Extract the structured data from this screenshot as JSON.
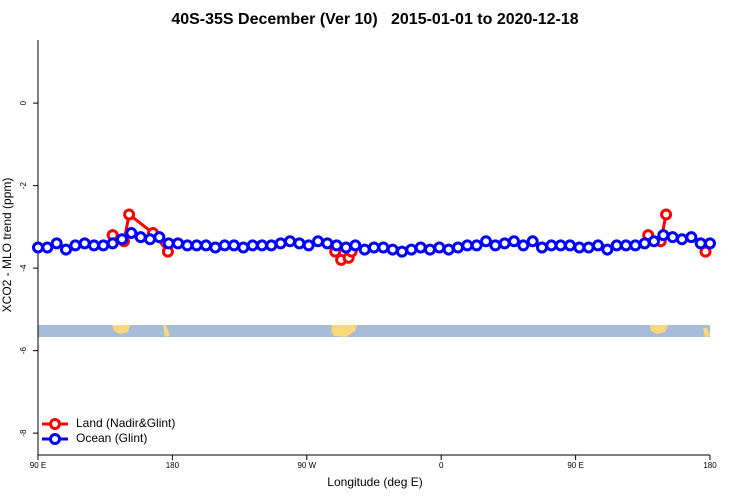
{
  "chart_data": {
    "type": "line",
    "title": "40S-35S December (Ver 10)   2015-01-01 to 2020-12-18",
    "xlabel": "Longitude (deg E)",
    "ylabel": "XCO2 - MLO trend (ppm)",
    "xlim": [
      90,
      540
    ],
    "ylim": [
      -8.53,
      1.53
    ],
    "xticks": [
      {
        "value": 90,
        "label": "90 E"
      },
      180,
      {
        "value": 270,
        "label": "90 W"
      },
      {
        "value": 360,
        "label": "0"
      },
      {
        "value": 450,
        "label": "90 E"
      },
      {
        "value": 540,
        "label": "180"
      }
    ],
    "yticks": [
      0,
      -2,
      -4,
      -6,
      -8
    ],
    "legend": "bottom-left",
    "series": [
      {
        "name": "Land (Nadir&Glint)",
        "color": "#ff0000",
        "x": [
          140,
          147.6,
          151,
          167,
          177,
          null,
          289,
          293,
          298,
          300,
          null,
          498.6,
          507,
          510.6,
          null,
          537
        ],
        "values": [
          -3.2,
          -3.35,
          -2.7,
          -3.15,
          -3.6,
          null,
          -3.6,
          -3.8,
          -3.75,
          -3.6,
          null,
          -3.2,
          -3.35,
          -2.7,
          null,
          -3.6
        ]
      },
      {
        "name": "Ocean (Glint)",
        "color": "#0000ff",
        "x": [
          90,
          96.25,
          102.5,
          108.75,
          115,
          121.25,
          127.5,
          133.75,
          140,
          146.25,
          152.5,
          158.75,
          165,
          171.25,
          177.5,
          183.75,
          190,
          196.25,
          202.5,
          208.75,
          215,
          221.25,
          227.5,
          233.75,
          240,
          246.25,
          252.5,
          258.75,
          265,
          271.25,
          277.5,
          283.75,
          290,
          296.25,
          302.5,
          308.75,
          315,
          321.25,
          327.5,
          333.75,
          340,
          346.25,
          352.5,
          358.75,
          365,
          371.25,
          377.5,
          383.75,
          390,
          396.25,
          402.5,
          408.75,
          415,
          421.25,
          427.5,
          433.75,
          440,
          446.25,
          452.5,
          458.75,
          465,
          471.25,
          477.5,
          483.75,
          490,
          496.25,
          502.5,
          508.75,
          515,
          521.25,
          527.5,
          533.75,
          540
        ],
        "values": [
          -3.5,
          -3.5,
          -3.4,
          -3.55,
          -3.45,
          -3.4,
          -3.45,
          -3.45,
          -3.4,
          -3.3,
          -3.15,
          -3.25,
          -3.3,
          -3.25,
          -3.4,
          -3.4,
          -3.45,
          -3.45,
          -3.45,
          -3.5,
          -3.45,
          -3.45,
          -3.5,
          -3.45,
          -3.45,
          -3.45,
          -3.4,
          -3.35,
          -3.4,
          -3.45,
          -3.35,
          -3.4,
          -3.45,
          -3.5,
          -3.45,
          -3.55,
          -3.5,
          -3.5,
          -3.55,
          -3.6,
          -3.55,
          -3.5,
          -3.55,
          -3.5,
          -3.55,
          -3.5,
          -3.45,
          -3.45,
          -3.35,
          -3.45,
          -3.4,
          -3.35,
          -3.45,
          -3.35,
          -3.5,
          -3.45,
          -3.45,
          -3.45,
          -3.5,
          -3.5,
          -3.45,
          -3.55,
          -3.45,
          -3.45,
          -3.45,
          -3.4,
          -3.35,
          -3.2,
          -3.25,
          -3.3,
          -3.25,
          -3.4,
          -3.4
        ]
      }
    ]
  }
}
